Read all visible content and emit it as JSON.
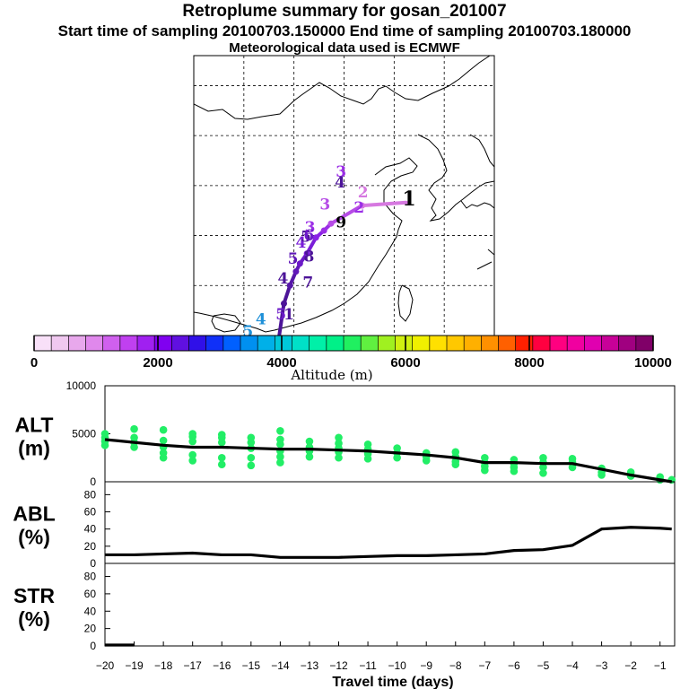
{
  "header": {
    "title": "Retroplume summary for gosan_201007",
    "sampling_line": "Start time of sampling 20100703.150000      End time of sampling 20100703.180000",
    "met_line": "Meteorological data used is ECMWF"
  },
  "map": {
    "track": [
      {
        "lon": 126.2,
        "lat": 33.3,
        "day": 1,
        "color": "#f0b4f0"
      },
      {
        "lon": 121.8,
        "lat": 33.0,
        "day": 2,
        "color": "#d678e0"
      },
      {
        "lon": 118.7,
        "lat": 31.2,
        "day": 3,
        "color": "#b64be6"
      },
      {
        "lon": 118.0,
        "lat": 30.5,
        "day": 4,
        "color": "#9b2ee6"
      },
      {
        "lon": 117.2,
        "lat": 29.8,
        "day": 5,
        "color": "#8a22e6"
      },
      {
        "lon": 116.3,
        "lat": 28.2,
        "day": 6,
        "color": "#7a1ed8"
      },
      {
        "lon": 115.6,
        "lat": 27.2,
        "day": 7,
        "color": "#6c1ac8"
      },
      {
        "lon": 115.2,
        "lat": 26.4,
        "day": 8,
        "color": "#6018b8"
      },
      {
        "lon": 114.6,
        "lat": 25.0,
        "day": 9,
        "color": "#5616a8"
      },
      {
        "lon": 114.0,
        "lat": 23.2,
        "day": 10,
        "color": "#4c1498"
      }
    ],
    "cluster_labels": [
      {
        "text": "1",
        "lon": 126.5,
        "lat": 33.0,
        "color": "#000000"
      },
      {
        "text": "2",
        "lon": 121.9,
        "lat": 33.8,
        "color": "#d678e0"
      },
      {
        "text": "2",
        "lon": 121.5,
        "lat": 32.3,
        "color": "#9b2ee6"
      },
      {
        "text": "3",
        "lon": 119.7,
        "lat": 35.9,
        "color": "#9b2ee6"
      },
      {
        "text": "3",
        "lon": 118.1,
        "lat": 32.6,
        "color": "#b64be6"
      },
      {
        "text": "3",
        "lon": 116.6,
        "lat": 30.3,
        "color": "#9b2ee6"
      },
      {
        "text": "4",
        "lon": 119.6,
        "lat": 34.8,
        "color": "#4c1498"
      },
      {
        "text": "4",
        "lon": 115.7,
        "lat": 28.8,
        "color": "#7a1ed8"
      },
      {
        "text": "4",
        "lon": 113.9,
        "lat": 25.2,
        "color": "#4c1498"
      },
      {
        "text": "4",
        "lon": 111.7,
        "lat": 21.1,
        "color": "#1e90d8"
      },
      {
        "text": "5",
        "lon": 116.2,
        "lat": 29.4,
        "color": "#4c1498"
      },
      {
        "text": "5",
        "lon": 114.9,
        "lat": 27.2,
        "color": "#6018b8"
      },
      {
        "text": "5",
        "lon": 113.7,
        "lat": 21.6,
        "color": "#6c1ac8"
      },
      {
        "text": "5",
        "lon": 110.4,
        "lat": 19.9,
        "color": "#1e90d8"
      },
      {
        "text": "6",
        "lon": 116.5,
        "lat": 29.5,
        "color": "#6c1ac8"
      },
      {
        "text": "7",
        "lon": 116.4,
        "lat": 24.8,
        "color": "#4c1498"
      },
      {
        "text": "8",
        "lon": 116.5,
        "lat": 27.4,
        "color": "#4c1498"
      },
      {
        "text": "9",
        "lon": 119.7,
        "lat": 30.8,
        "color": "#000000"
      },
      {
        "text": "1",
        "lon": 114.5,
        "lat": 21.6,
        "color": "#4c1498"
      }
    ]
  },
  "colorbar": {
    "label": "Altitude (m)",
    "tick_labels": [
      "0",
      "2000",
      "4000",
      "6000",
      "8000",
      "10000"
    ],
    "range": [
      0,
      10000
    ],
    "colors": [
      "#f8e0f8",
      "#f0c8f0",
      "#e8a8ec",
      "#e088ec",
      "#d060ee",
      "#c040f0",
      "#a020f0",
      "#8000f0",
      "#6010e0",
      "#3010e8",
      "#1030f8",
      "#0060ff",
      "#0090f0",
      "#00b0e8",
      "#00c8d8",
      "#00e0c8",
      "#00f0a8",
      "#00f088",
      "#20f060",
      "#60f040",
      "#a0f020",
      "#d0f010",
      "#f0f000",
      "#ffe000",
      "#ffc800",
      "#ffb000",
      "#ff9000",
      "#ff6000",
      "#ff2000",
      "#ff0040",
      "#ff0080",
      "#f000a0",
      "#e000b0",
      "#c80098",
      "#a00080",
      "#800068"
    ]
  },
  "chart_data": [
    {
      "type": "line+scatter",
      "name": "ALT",
      "ylabel": "ALT",
      "yunit": "(m)",
      "ylim": [
        0,
        10000
      ],
      "yticks": [
        "10000",
        "5000",
        "0"
      ],
      "xlim": [
        -20,
        -0.5
      ],
      "line": {
        "x": [
          -20,
          -19,
          -18,
          -17,
          -16,
          -15,
          -14,
          -13,
          -12,
          -11,
          -10,
          -9,
          -8,
          -7,
          -6,
          -5,
          -4,
          -3,
          -2,
          -1,
          -0.6
        ],
        "y": [
          4400,
          4100,
          3800,
          3600,
          3600,
          3500,
          3400,
          3400,
          3300,
          3200,
          3000,
          2800,
          2500,
          2000,
          2000,
          1900,
          1900,
          1300,
          700,
          200,
          0
        ]
      },
      "points": [
        {
          "x": -20,
          "y": [
            5000,
            4600,
            4200,
            3800
          ]
        },
        {
          "x": -19,
          "y": [
            5500,
            4600,
            4100,
            3600
          ]
        },
        {
          "x": -18,
          "y": [
            5400,
            4300,
            3600,
            3000,
            2500
          ]
        },
        {
          "x": -17,
          "y": [
            5000,
            4700,
            4200,
            2800,
            2200
          ]
        },
        {
          "x": -16,
          "y": [
            4900,
            4600,
            4100,
            2500,
            1800
          ]
        },
        {
          "x": -15,
          "y": [
            4600,
            4100,
            3500,
            2500,
            1700
          ]
        },
        {
          "x": -14,
          "y": [
            5300,
            4400,
            3900,
            3200,
            2600,
            2000
          ]
        },
        {
          "x": -13,
          "y": [
            4200,
            3600,
            3200,
            2600
          ]
        },
        {
          "x": -12,
          "y": [
            4600,
            4000,
            3500,
            3100,
            2500
          ]
        },
        {
          "x": -11,
          "y": [
            3900,
            3400,
            2900,
            2400
          ]
        },
        {
          "x": -10,
          "y": [
            3500,
            3000,
            2500
          ]
        },
        {
          "x": -9,
          "y": [
            3000,
            2600,
            2200
          ]
        },
        {
          "x": -8,
          "y": [
            3100,
            2600,
            2100,
            1800
          ]
        },
        {
          "x": -7,
          "y": [
            2500,
            2000,
            1600,
            1200
          ]
        },
        {
          "x": -6,
          "y": [
            2300,
            1900,
            1500,
            1100
          ]
        },
        {
          "x": -5,
          "y": [
            2500,
            2000,
            1500,
            900
          ]
        },
        {
          "x": -4,
          "y": [
            2400,
            2000,
            1500
          ]
        },
        {
          "x": -3,
          "y": [
            1400,
            1000,
            700
          ]
        },
        {
          "x": -2,
          "y": [
            1000,
            600
          ]
        },
        {
          "x": -1,
          "y": [
            500,
            200
          ]
        },
        {
          "x": -0.6,
          "y": [
            200
          ]
        }
      ]
    },
    {
      "type": "line",
      "name": "ABL",
      "ylabel": "ABL",
      "yunit": "(%)",
      "ylim": [
        0,
        95
      ],
      "yticks": [
        "80",
        "60",
        "40",
        "20",
        "0"
      ],
      "x": [
        -20,
        -19,
        -18,
        -17,
        -16,
        -15,
        -14,
        -13,
        -12,
        -11,
        -10,
        -9,
        -8,
        -7,
        -6,
        -5,
        -4,
        -3,
        -2,
        -1,
        -0.6
      ],
      "y": [
        10,
        10,
        11,
        12,
        10,
        10,
        7,
        7,
        7,
        8,
        9,
        9,
        10,
        11,
        15,
        16,
        21,
        40,
        42,
        41,
        40
      ]
    },
    {
      "type": "line",
      "name": "STR",
      "ylabel": "STR",
      "yunit": "(%)",
      "ylim": [
        0,
        95
      ],
      "yticks": [
        "80",
        "60",
        "40",
        "20",
        "0"
      ],
      "x": [
        -20,
        -19.5,
        -19
      ],
      "y": [
        1,
        1,
        1
      ]
    }
  ],
  "xaxis": {
    "xlabel": "Travel time (days)",
    "tick_labels": [
      "−20",
      "−19",
      "−18",
      "−17",
      "−16",
      "−15",
      "−14",
      "−13",
      "−12",
      "−11",
      "−10",
      "−9",
      "−8",
      "−7",
      "−6",
      "−5",
      "−4",
      "−3",
      "−2",
      "−1"
    ],
    "tick_values": [
      -20,
      -19,
      -18,
      -17,
      -16,
      -15,
      -14,
      -13,
      -12,
      -11,
      -10,
      -9,
      -8,
      -7,
      -6,
      -5,
      -4,
      -3,
      -2,
      -1
    ]
  },
  "colors": {
    "points": "#22ee66",
    "line": "#000000",
    "coast": "#000000",
    "grid": "#000000"
  }
}
